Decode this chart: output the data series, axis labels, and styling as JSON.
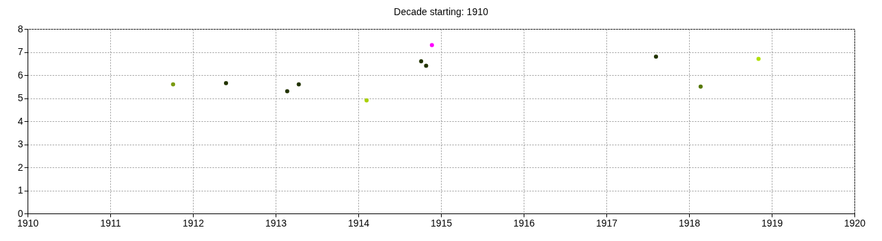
{
  "chart_data": {
    "type": "scatter",
    "title": "Decade starting: 1910",
    "x": [
      1911.76,
      1912.4,
      1913.14,
      1913.28,
      1914.1,
      1914.76,
      1914.82,
      1914.89,
      1917.6,
      1918.14,
      1918.84
    ],
    "values": [
      5.6,
      5.65,
      5.3,
      5.6,
      4.9,
      6.6,
      6.4,
      7.3,
      6.8,
      5.5,
      6.7
    ],
    "colors": [
      "#7a9a10",
      "#223300",
      "#223300",
      "#223300",
      "#a8d000",
      "#223300",
      "#223300",
      "#ff00ff",
      "#223300",
      "#557700",
      "#b0e000"
    ],
    "xlim": [
      1910,
      1920
    ],
    "xticks": [
      1910,
      1911,
      1912,
      1913,
      1914,
      1915,
      1916,
      1917,
      1918,
      1919,
      1920
    ],
    "ylim": [
      0,
      8
    ],
    "yticks": [
      0,
      1,
      2,
      3,
      4,
      5,
      6,
      7,
      8
    ],
    "grid": true,
    "marker": "circle"
  }
}
